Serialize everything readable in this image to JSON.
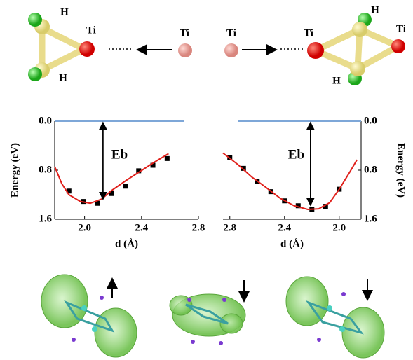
{
  "chart_data": [
    {
      "type": "line",
      "axis_side": "left",
      "xlabel": "d (Å)",
      "ylabel": "Energy (eV)",
      "annotation": "Eb",
      "xlim": [
        1.79,
        2.8
      ],
      "xticks": [
        {
          "value": 2.0,
          "label": "2.0"
        },
        {
          "value": 2.4,
          "label": "2.4"
        },
        {
          "value": 2.8,
          "label": "2.8"
        }
      ],
      "ylim": [
        1.6,
        0.0
      ],
      "yticks": [
        {
          "value": 0.0,
          "label": "0.0"
        },
        {
          "value": 0.8,
          "label": "0.8"
        },
        {
          "value": 1.6,
          "label": "1.6"
        }
      ],
      "reference_line": {
        "y": 0.0,
        "x": [
          1.79,
          2.7
        ],
        "color": "#7ea7d8"
      },
      "series": [
        {
          "style": "markers",
          "color": "#000000",
          "x": [
            1.89,
            1.99,
            2.09,
            2.19,
            2.29,
            2.38,
            2.48,
            2.58
          ],
          "values": [
            1.14,
            1.31,
            1.34,
            1.18,
            1.06,
            0.81,
            0.72,
            0.61
          ]
        },
        {
          "style": "curve",
          "color": "#e0201b",
          "x": [
            1.79,
            1.84,
            1.89,
            1.97,
            2.04,
            2.12,
            2.19,
            2.29,
            2.39,
            2.49,
            2.59
          ],
          "values": [
            0.74,
            1.02,
            1.2,
            1.31,
            1.34,
            1.27,
            1.13,
            0.97,
            0.82,
            0.67,
            0.53
          ]
        }
      ]
    },
    {
      "type": "line",
      "axis_side": "right",
      "xlabel": "d (Å)",
      "ylabel": "Energy (eV)",
      "annotation": "Eb",
      "xlim": [
        2.85,
        1.84
      ],
      "xticks": [
        {
          "value": 2.8,
          "label": "2.8"
        },
        {
          "value": 2.4,
          "label": "2.4"
        },
        {
          "value": 2.0,
          "label": "2.0"
        }
      ],
      "ylim": [
        1.6,
        0.0
      ],
      "yticks": [
        {
          "value": 0.0,
          "label": "0.0"
        },
        {
          "value": 0.8,
          "label": "0.8"
        },
        {
          "value": 1.6,
          "label": "1.6"
        }
      ],
      "reference_line": {
        "y": 0.0,
        "x": [
          2.74,
          1.84
        ],
        "color": "#7ea7d8"
      },
      "series": [
        {
          "style": "markers",
          "color": "#000000",
          "x": [
            2.8,
            2.7,
            2.6,
            2.5,
            2.4,
            2.3,
            2.2,
            2.1,
            2.0
          ],
          "values": [
            0.6,
            0.77,
            0.98,
            1.15,
            1.3,
            1.38,
            1.44,
            1.39,
            1.11
          ]
        },
        {
          "style": "curve",
          "color": "#e0201b",
          "x": [
            2.85,
            2.74,
            2.64,
            2.53,
            2.43,
            2.33,
            2.23,
            2.15,
            2.07,
            2.0,
            1.92,
            1.87
          ],
          "values": [
            0.52,
            0.71,
            0.91,
            1.09,
            1.26,
            1.38,
            1.44,
            1.43,
            1.33,
            1.11,
            0.82,
            0.63
          ]
        }
      ]
    }
  ],
  "molecules": {
    "labels": [
      "H",
      "Ti",
      "H",
      "Ti",
      "Ti",
      "Ti",
      "Ti",
      "H",
      "H"
    ]
  }
}
